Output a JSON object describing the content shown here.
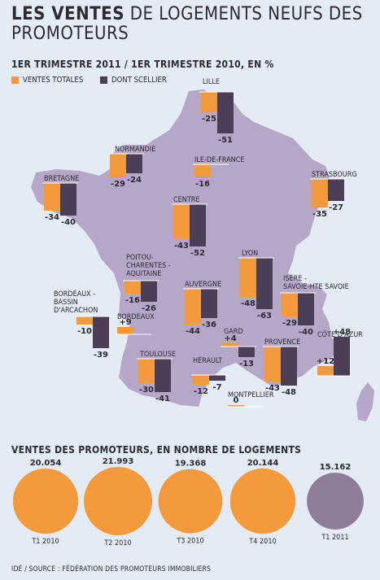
{
  "title_bold": "LES VENTES",
  "title_rest": "DE LOGEMENTS NEUFS DES PROMOTEURS",
  "subtitle": "1ER TRIMESTRE 2011 / 1ER TRIMESTRE 2010, EN %",
  "colors": {
    "orange": "#f39a3c",
    "dark": "#4b3e56",
    "map": "#b6a7c8",
    "bg": "#e3ebf5",
    "lightpurple": "#8e7c98"
  },
  "legend": {
    "series1": "VENTES TOTALES",
    "series2": "DONT SCELLIER"
  },
  "chart_data": [
    {
      "type": "bar",
      "title": "LES VENTES DE LOGEMENTS NEUFS DES PROMOTEURS",
      "subtitle": "1ER TRIMESTRE 2011 / 1ER TRIMESTRE 2010, EN %",
      "series_names": [
        "VENTES TOTALES",
        "DONT SCELLIER"
      ],
      "regions": [
        {
          "name": "LILLE",
          "totales": -25,
          "scellier": -51
        },
        {
          "name": "NORMANDIE",
          "totales": -29,
          "scellier": -24
        },
        {
          "name": "ILE-DE-FRANCE",
          "totales": -16,
          "scellier": null
        },
        {
          "name": "STRASBOURG",
          "totales": -35,
          "scellier": -27
        },
        {
          "name": "BRETAGNE",
          "totales": -34,
          "scellier": -40
        },
        {
          "name": "CENTRE",
          "totales": -43,
          "scellier": -52
        },
        {
          "name": "POITOU-CHARENTES - AQUITAINE",
          "totales": -16,
          "scellier": -26
        },
        {
          "name": "LYON",
          "totales": -48,
          "scellier": -63
        },
        {
          "name": "AUVERGNE",
          "totales": -44,
          "scellier": -36
        },
        {
          "name": "ISÈRE - SAVOIE-HTE SAVOIE",
          "totales": -29,
          "scellier": -40
        },
        {
          "name": "BORDEAUX - BASSIN D'ARCACHON",
          "totales": -10,
          "scellier": -39
        },
        {
          "name": "BORDEAUX",
          "totales": 9,
          "scellier": null
        },
        {
          "name": "GARD",
          "totales": 4,
          "scellier": -13
        },
        {
          "name": "CÔTE D'AZUR",
          "totales": 12,
          "scellier": 48
        },
        {
          "name": "TOULOUSE",
          "totales": -30,
          "scellier": -41
        },
        {
          "name": "HÉRAULT",
          "totales": -12,
          "scellier": -7
        },
        {
          "name": "PROVENCE",
          "totales": -43,
          "scellier": -48
        },
        {
          "name": "MONTPELLIER",
          "totales": 0,
          "scellier": null
        }
      ]
    },
    {
      "type": "bubble",
      "title": "VENTES DES PROMOTEURS, EN NOMBRE DE LOGEMENTS",
      "categories": [
        "T1 2010",
        "T2 2010",
        "T3 2010",
        "T4 2010",
        "T1 2011"
      ],
      "values": [
        20054,
        21993,
        19368,
        20144,
        15162
      ],
      "value_labels": [
        "20.054",
        "21.993",
        "19.368",
        "20.144",
        "15.162"
      ]
    }
  ],
  "section2_title": "VENTES DES PROMOTEURS, EN NOMBRE DE LOGEMENTS",
  "footer": "IDÉ / SOURCE : FÉDÉRATION DES PROMOTEURS IMMOBILIERS"
}
